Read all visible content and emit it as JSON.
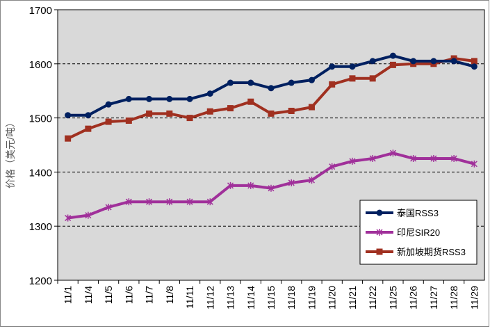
{
  "chart_data": {
    "type": "line",
    "title": "",
    "xlabel": "",
    "ylabel": "价格（美元/吨）",
    "ylim": [
      1200,
      1700
    ],
    "yticks": [
      1200,
      1300,
      1400,
      1500,
      1600,
      1700
    ],
    "grid": "horizontal dashed",
    "legend_position": "bottom-right",
    "categories": [
      "11/1",
      "11/4",
      "11/5",
      "11/6",
      "11/7",
      "11/8",
      "11/11",
      "11/12",
      "11/13",
      "11/14",
      "11/15",
      "11/18",
      "11/19",
      "11/20",
      "11/21",
      "11/22",
      "11/25",
      "11/26",
      "11/27",
      "11/28",
      "11/29"
    ],
    "series": [
      {
        "name": "泰国RSS3",
        "color": "#002060",
        "marker": "circle",
        "values": [
          1505,
          1505,
          1525,
          1535,
          1535,
          1535,
          1535,
          1545,
          1565,
          1565,
          1555,
          1565,
          1570,
          1595,
          1595,
          1605,
          1615,
          1605,
          1605,
          1605,
          1595
        ]
      },
      {
        "name": "印尼SIR20",
        "color": "#a0309a",
        "marker": "star",
        "values": [
          1315,
          1320,
          1335,
          1345,
          1345,
          1345,
          1345,
          1345,
          1375,
          1375,
          1370,
          1380,
          1385,
          1410,
          1420,
          1425,
          1435,
          1425,
          1425,
          1425,
          1415
        ]
      },
      {
        "name": "新加坡期货RSS3",
        "color": "#a03020",
        "marker": "square",
        "values": [
          1462,
          1480,
          1493,
          1495,
          1508,
          1508,
          1500,
          1512,
          1518,
          1530,
          1508,
          1513,
          1520,
          1562,
          1573,
          1573,
          1598,
          1600,
          1600,
          1610,
          1605
        ]
      }
    ]
  }
}
